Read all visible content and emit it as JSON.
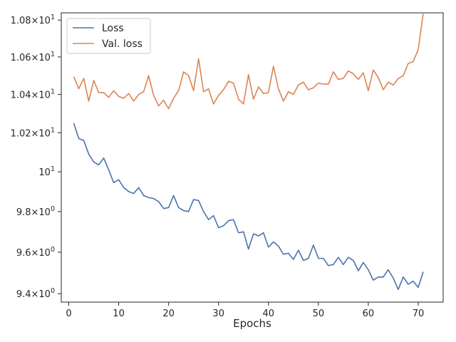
{
  "chart_data": {
    "type": "line",
    "title": "",
    "xlabel": "Epochs",
    "ylabel": "",
    "xlim": [
      -1.5,
      75
    ],
    "ylim": [
      9.36,
      10.84
    ],
    "y_scale": "log",
    "grid": false,
    "legend_position": "top-left",
    "xticks": [
      0,
      10,
      20,
      30,
      40,
      50,
      60,
      70
    ],
    "yticks": [
      {
        "value": 9.4,
        "mantissa": "9.4",
        "base": "10",
        "exp": "0"
      },
      {
        "value": 9.6,
        "mantissa": "9.6",
        "base": "10",
        "exp": "0"
      },
      {
        "value": 9.8,
        "mantissa": "9.8",
        "base": "10",
        "exp": "0"
      },
      {
        "value": 10.0,
        "mantissa": "",
        "base": "10",
        "exp": "1"
      },
      {
        "value": 10.2,
        "mantissa": "1.02",
        "base": "10",
        "exp": "1"
      },
      {
        "value": 10.4,
        "mantissa": "1.04",
        "base": "10",
        "exp": "1"
      },
      {
        "value": 10.6,
        "mantissa": "1.06",
        "base": "10",
        "exp": "1"
      },
      {
        "value": 10.8,
        "mantissa": "1.08",
        "base": "10",
        "exp": "1"
      }
    ],
    "series": [
      {
        "name": "Loss",
        "color": "#4c72b0",
        "x": [
          1,
          2,
          3,
          4,
          5,
          6,
          7,
          8,
          9,
          10,
          11,
          12,
          13,
          14,
          15,
          16,
          17,
          18,
          19,
          20,
          21,
          22,
          23,
          24,
          25,
          26,
          27,
          28,
          29,
          30,
          31,
          32,
          33,
          34,
          35,
          36,
          37,
          38,
          39,
          40,
          41,
          42,
          43,
          44,
          45,
          46,
          47,
          48,
          49,
          50,
          51,
          52,
          53,
          54,
          55,
          56,
          57,
          58,
          59,
          60,
          61,
          62,
          63,
          64,
          65,
          66,
          67,
          68,
          69,
          70,
          71
        ],
        "y": [
          10.25,
          10.17,
          10.16,
          10.09,
          10.05,
          10.035,
          10.07,
          10.01,
          9.945,
          9.96,
          9.92,
          9.9,
          9.89,
          9.92,
          9.88,
          9.87,
          9.865,
          9.85,
          9.815,
          9.82,
          9.88,
          9.82,
          9.805,
          9.8,
          9.86,
          9.855,
          9.8,
          9.76,
          9.78,
          9.72,
          9.73,
          9.755,
          9.76,
          9.695,
          9.7,
          9.615,
          9.69,
          9.68,
          9.695,
          9.625,
          9.65,
          9.63,
          9.59,
          9.595,
          9.565,
          9.61,
          9.56,
          9.57,
          9.635,
          9.57,
          9.57,
          9.535,
          9.54,
          9.575,
          9.54,
          9.575,
          9.56,
          9.51,
          9.55,
          9.515,
          9.465,
          9.48,
          9.48,
          9.515,
          9.475,
          9.42,
          9.48,
          9.445,
          9.46,
          9.43,
          9.505
        ]
      },
      {
        "name": "Val. loss",
        "color": "#dd8452",
        "x": [
          1,
          2,
          3,
          4,
          5,
          6,
          7,
          8,
          9,
          10,
          11,
          12,
          13,
          14,
          15,
          16,
          17,
          18,
          19,
          20,
          21,
          22,
          23,
          24,
          25,
          26,
          27,
          28,
          29,
          30,
          31,
          32,
          33,
          34,
          35,
          36,
          37,
          38,
          39,
          40,
          41,
          42,
          43,
          44,
          45,
          46,
          47,
          48,
          49,
          50,
          51,
          52,
          53,
          54,
          55,
          56,
          57,
          58,
          59,
          60,
          61,
          62,
          63,
          64,
          65,
          66,
          67,
          68,
          69,
          70,
          71
        ],
        "y": [
          10.495,
          10.43,
          10.485,
          10.365,
          10.475,
          10.41,
          10.41,
          10.385,
          10.42,
          10.39,
          10.38,
          10.405,
          10.365,
          10.4,
          10.415,
          10.5,
          10.395,
          10.34,
          10.37,
          10.325,
          10.38,
          10.42,
          10.52,
          10.5,
          10.42,
          10.59,
          10.415,
          10.43,
          10.35,
          10.395,
          10.425,
          10.47,
          10.46,
          10.375,
          10.35,
          10.505,
          10.375,
          10.44,
          10.405,
          10.41,
          10.55,
          10.43,
          10.365,
          10.415,
          10.4,
          10.45,
          10.465,
          10.425,
          10.435,
          10.46,
          10.455,
          10.455,
          10.52,
          10.48,
          10.485,
          10.525,
          10.51,
          10.48,
          10.515,
          10.42,
          10.53,
          10.49,
          10.425,
          10.465,
          10.45,
          10.485,
          10.5,
          10.565,
          10.575,
          10.64,
          10.835
        ]
      }
    ]
  }
}
